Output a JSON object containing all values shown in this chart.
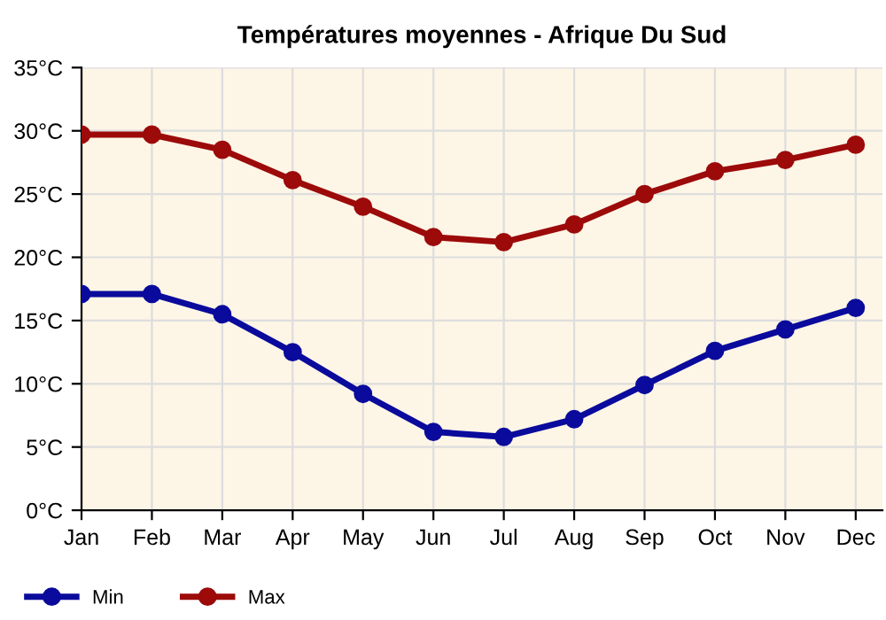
{
  "chart_data": {
    "type": "line",
    "title": "Températures moyennes - Afrique Du Sud",
    "categories": [
      "Jan",
      "Feb",
      "Mar",
      "Apr",
      "May",
      "Jun",
      "Jul",
      "Aug",
      "Sep",
      "Oct",
      "Nov",
      "Dec"
    ],
    "series": [
      {
        "name": "Min",
        "color": "#0a0a9c",
        "values": [
          17.1,
          17.1,
          15.5,
          12.5,
          9.2,
          6.2,
          5.8,
          7.2,
          9.9,
          12.6,
          14.3,
          16.0
        ]
      },
      {
        "name": "Max",
        "color": "#9c0a0a",
        "values": [
          29.7,
          29.7,
          28.5,
          26.1,
          24.0,
          21.6,
          21.2,
          22.6,
          25.0,
          26.8,
          27.7,
          28.9
        ]
      }
    ],
    "ylim": [
      0,
      35
    ],
    "yticks": [
      {
        "value": 0,
        "label": "0°C"
      },
      {
        "value": 5,
        "label": "5°C"
      },
      {
        "value": 10,
        "label": "10°C"
      },
      {
        "value": 15,
        "label": "15°C"
      },
      {
        "value": 20,
        "label": "20°C"
      },
      {
        "value": 25,
        "label": "25°C"
      },
      {
        "value": 30,
        "label": "30°C"
      },
      {
        "value": 35,
        "label": "35°C"
      }
    ],
    "grid": true,
    "legend": "bottom left",
    "marker": "circle",
    "line_style": "solid"
  }
}
